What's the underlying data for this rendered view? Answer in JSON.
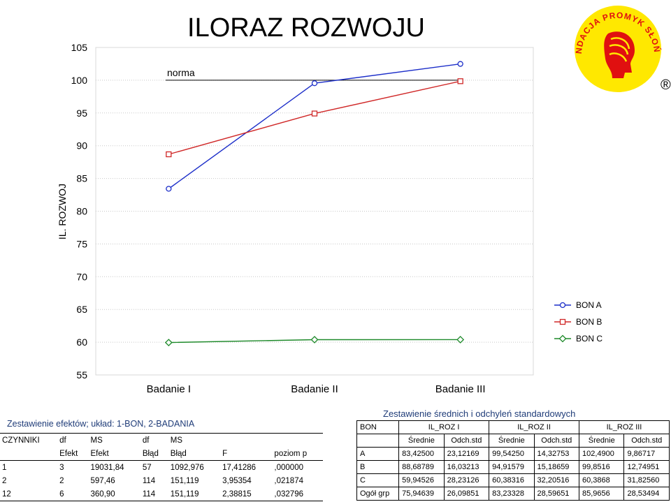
{
  "chart_data": {
    "type": "line",
    "title": "ILORAZ ROZWOJU",
    "ylabel": "IL. ROZWOJ",
    "categories": [
      "Badanie I",
      "Badanie II",
      "Badanie III"
    ],
    "ylim": [
      55,
      105
    ],
    "yticks": [
      "55",
      "60",
      "65",
      "70",
      "75",
      "80",
      "85",
      "90",
      "95",
      "100",
      "105"
    ],
    "reference_line": {
      "label": "norma",
      "value": 100
    },
    "series": [
      {
        "name": "BON A",
        "values": [
          83.425,
          99.5425,
          102.49
        ],
        "color": "#1c2ec9",
        "marker": "circle"
      },
      {
        "name": "BON B",
        "values": [
          88.68789,
          94.91579,
          99.8516
        ],
        "color": "#d02828",
        "marker": "square"
      },
      {
        "name": "BON C",
        "values": [
          59.94526,
          60.38316,
          60.3868
        ],
        "color": "#1e8a2a",
        "marker": "diamond"
      }
    ],
    "legend": "right",
    "grid": true
  },
  "effects_table": {
    "title": "Zestawienie efektów; układ: 1-BON, 2-BADANIA",
    "header1": [
      "CZYNNIKI",
      "df",
      "MS",
      "df",
      "MS",
      "",
      ""
    ],
    "header2": [
      "",
      "Efekt",
      "Efekt",
      "Błąd",
      "Błąd",
      "F",
      "poziom p"
    ],
    "rows": [
      [
        "1",
        "3",
        "19031,84",
        "57",
        "1092,976",
        "17,41286",
        ",000000"
      ],
      [
        "2",
        "2",
        "597,46",
        "114",
        "151,119",
        "3,95354",
        ",021874"
      ],
      [
        "12",
        "6",
        "360,90",
        "114",
        "151,119",
        "2,38815",
        ",032796"
      ]
    ]
  },
  "means_table": {
    "title": "Zestawienie średnich i odchyleń standardowych",
    "group_header": [
      "BON",
      "IL_ROZ I",
      "IL_ROZ II",
      "IL_ROZ III"
    ],
    "sub_header": [
      "",
      "Średnie",
      "Odch.std",
      "Średnie",
      "Odch.std",
      "Średnie",
      "Odch.std"
    ],
    "rows": [
      [
        "A",
        "83,42500",
        "23,12169",
        "99,54250",
        "14,32753",
        "102,4900",
        "9,86717"
      ],
      [
        "B",
        "88,68789",
        "16,03213",
        "94,91579",
        "15,18659",
        "99,8516",
        "12,74951"
      ],
      [
        "C",
        "59,94526",
        "28,23126",
        "60,38316",
        "32,20516",
        "60,3868",
        "31,82560"
      ],
      [
        "Ogół grp",
        "75,94639",
        "26,09851",
        "83,23328",
        "28,59651",
        "85,9656",
        "28,53494"
      ]
    ]
  },
  "logo": {
    "text": "FUNDACJA PROMYK SŁOŃCA",
    "mark": "®",
    "colors": {
      "background": "#ffe800",
      "text": "#e01010"
    }
  }
}
